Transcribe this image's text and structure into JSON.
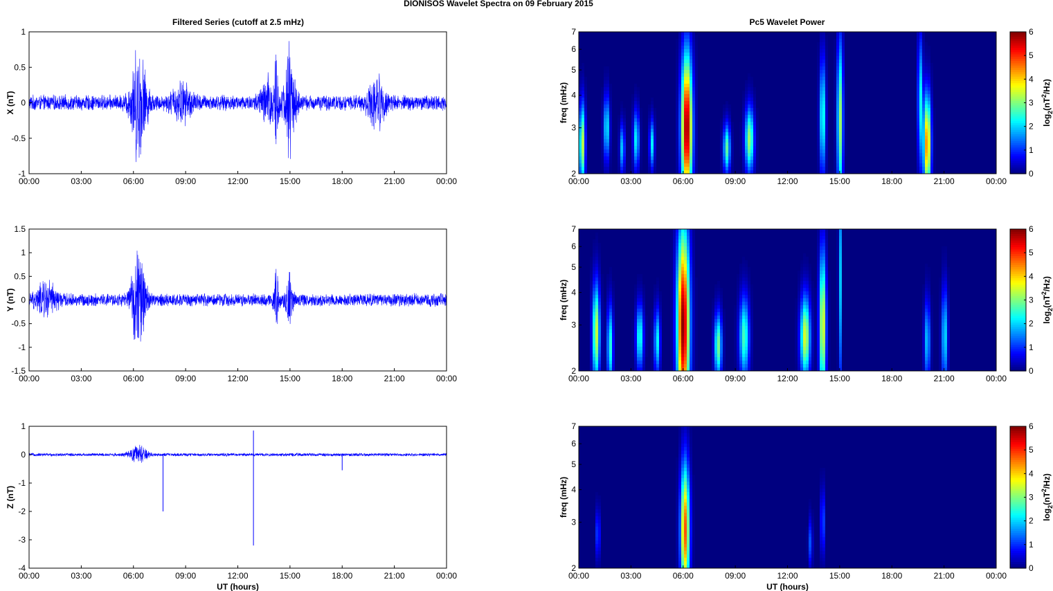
{
  "figure": {
    "title": "DIONISOS Wavelet Spectra on 09 February  2015",
    "left_title": "Filtered Series (cutoff at 2.5 mHz)",
    "right_title": "Pc5 Wavelet Power",
    "x_label": "UT (hours)",
    "x_ticks": [
      "00:00",
      "03:00",
      "06:00",
      "09:00",
      "12:00",
      "15:00",
      "18:00",
      "21:00",
      "00:00"
    ],
    "freq_label": "freq (mHz)",
    "freq_ticks": [
      "2",
      "3",
      "4",
      "5",
      "6",
      "7"
    ],
    "colorbar_label_base": "log",
    "colorbar_label_sub": "2",
    "colorbar_label_mid": "(nT",
    "colorbar_label_sup": "2",
    "colorbar_label_end": "/Hz)",
    "colorbar_ticks": [
      "0",
      "1",
      "2",
      "3",
      "4",
      "5",
      "6"
    ]
  },
  "chart_data": [
    {
      "type": "line",
      "title": "Filtered Series (cutoff at 2.5 mHz)",
      "xlabel": "",
      "ylabel": "X (nT)",
      "xlim": [
        0,
        24
      ],
      "ylim": [
        -1,
        1
      ],
      "yticks": [
        "-1",
        "-0.5",
        "0",
        "0.5",
        "1"
      ],
      "color": "#0000ff",
      "noise_level": 0.12,
      "bursts": [
        {
          "t": 6.3,
          "amp": 0.85,
          "w": 0.45
        },
        {
          "t": 15.0,
          "amp": 0.9,
          "w": 0.3
        },
        {
          "t": 14.2,
          "amp": 0.8,
          "w": 0.1
        },
        {
          "t": 20.0,
          "amp": 0.35,
          "w": 0.5
        },
        {
          "t": 8.8,
          "amp": 0.25,
          "w": 0.6
        },
        {
          "t": 13.8,
          "amp": 0.35,
          "w": 0.5
        }
      ]
    },
    {
      "type": "line",
      "title": "",
      "xlabel": "",
      "ylabel": "Y (nT)",
      "xlim": [
        0,
        24
      ],
      "ylim": [
        -1.5,
        1.5
      ],
      "yticks": [
        "-1.5",
        "-1",
        "-0.5",
        "0",
        "0.5",
        "1",
        "1.5"
      ],
      "color": "#0000ff",
      "noise_level": 0.15,
      "bursts": [
        {
          "t": 6.3,
          "amp": 1.15,
          "w": 0.4
        },
        {
          "t": 14.2,
          "amp": 0.7,
          "w": 0.15
        },
        {
          "t": 15.0,
          "amp": 0.6,
          "w": 0.2
        },
        {
          "t": 1.0,
          "amp": 0.35,
          "w": 0.6
        }
      ]
    },
    {
      "type": "line",
      "title": "",
      "xlabel": "UT (hours)",
      "ylabel": "Z (nT)",
      "xlim": [
        0,
        24
      ],
      "ylim": [
        -4,
        1
      ],
      "yticks": [
        "-4",
        "-3",
        "-2",
        "-1",
        "0",
        "1"
      ],
      "color": "#0000ff",
      "noise_level": 0.06,
      "bursts": [
        {
          "t": 6.3,
          "amp": 0.35,
          "w": 0.5
        }
      ],
      "spikes": [
        {
          "t": 7.7,
          "value": -2.0
        },
        {
          "t": 12.9,
          "value": -3.2
        },
        {
          "t": 12.9,
          "value": 0.85
        },
        {
          "t": 18.0,
          "value": -0.55
        }
      ]
    },
    {
      "type": "heatmap",
      "title": "Pc5 Wavelet Power",
      "xlabel": "",
      "ylabel": "freq (mHz)",
      "xlim": [
        0,
        24
      ],
      "ylim": [
        2,
        7
      ],
      "y_scale": "log",
      "colorbar": [
        0,
        6
      ],
      "blobs": [
        {
          "t": 0.2,
          "f": 2.6,
          "amp": 3.5,
          "wt": 0.12,
          "wf": 0.25
        },
        {
          "t": 1.6,
          "f": 3.0,
          "amp": 2.3,
          "wt": 0.12,
          "wf": 0.2
        },
        {
          "t": 2.5,
          "f": 2.5,
          "amp": 2.0,
          "wt": 0.1,
          "wf": 0.15
        },
        {
          "t": 3.3,
          "f": 2.7,
          "amp": 2.3,
          "wt": 0.12,
          "wf": 0.18
        },
        {
          "t": 4.2,
          "f": 2.6,
          "amp": 2.2,
          "wt": 0.1,
          "wf": 0.15
        },
        {
          "t": 6.2,
          "f": 3.0,
          "amp": 6.0,
          "wt": 0.22,
          "wf": 0.45
        },
        {
          "t": 8.5,
          "f": 2.5,
          "amp": 2.8,
          "wt": 0.14,
          "wf": 0.15
        },
        {
          "t": 9.8,
          "f": 2.7,
          "amp": 3.2,
          "wt": 0.18,
          "wf": 0.2
        },
        {
          "t": 14.0,
          "f": 3.3,
          "amp": 2.6,
          "wt": 0.12,
          "wf": 0.35
        },
        {
          "t": 15.0,
          "f": 3.2,
          "amp": 3.2,
          "wt": 0.12,
          "wf": 0.5
        },
        {
          "t": 20.0,
          "f": 2.6,
          "amp": 4.6,
          "wt": 0.15,
          "wf": 0.3
        },
        {
          "t": 19.6,
          "f": 3.8,
          "amp": 2.3,
          "wt": 0.1,
          "wf": 0.4
        }
      ]
    },
    {
      "type": "heatmap",
      "title": "",
      "xlabel": "",
      "ylabel": "freq (mHz)",
      "xlim": [
        0,
        24
      ],
      "ylim": [
        2,
        7
      ],
      "y_scale": "log",
      "colorbar": [
        0,
        6
      ],
      "blobs": [
        {
          "t": 1.0,
          "f": 2.8,
          "amp": 3.5,
          "wt": 0.15,
          "wf": 0.3
        },
        {
          "t": 1.8,
          "f": 2.5,
          "amp": 2.5,
          "wt": 0.12,
          "wf": 0.25
        },
        {
          "t": 3.5,
          "f": 2.7,
          "amp": 2.5,
          "wt": 0.15,
          "wf": 0.2
        },
        {
          "t": 4.5,
          "f": 2.6,
          "amp": 2.3,
          "wt": 0.12,
          "wf": 0.2
        },
        {
          "t": 6.0,
          "f": 3.0,
          "amp": 6.0,
          "wt": 0.25,
          "wf": 0.6
        },
        {
          "t": 8.0,
          "f": 2.5,
          "amp": 3.0,
          "wt": 0.15,
          "wf": 0.2
        },
        {
          "t": 9.5,
          "f": 2.7,
          "amp": 2.7,
          "wt": 0.2,
          "wf": 0.25
        },
        {
          "t": 13.0,
          "f": 2.7,
          "amp": 3.6,
          "wt": 0.2,
          "wf": 0.25
        },
        {
          "t": 14.0,
          "f": 3.0,
          "amp": 3.8,
          "wt": 0.14,
          "wf": 0.45
        },
        {
          "t": 15.0,
          "f": 4.5,
          "amp": 2.0,
          "wt": 0.06,
          "wf": 0.7
        },
        {
          "t": 20.0,
          "f": 2.6,
          "amp": 2.0,
          "wt": 0.12,
          "wf": 0.25
        },
        {
          "t": 21.0,
          "f": 2.7,
          "amp": 2.2,
          "wt": 0.12,
          "wf": 0.3
        }
      ]
    },
    {
      "type": "heatmap",
      "title": "",
      "xlabel": "UT (hours)",
      "ylabel": "freq (mHz)",
      "xlim": [
        0,
        24
      ],
      "ylim": [
        2,
        7
      ],
      "y_scale": "log",
      "colorbar": [
        0,
        6
      ],
      "blobs": [
        {
          "t": 6.1,
          "f": 2.8,
          "amp": 4.8,
          "wt": 0.18,
          "wf": 0.4
        },
        {
          "t": 1.1,
          "f": 2.7,
          "amp": 1.4,
          "wt": 0.08,
          "wf": 0.15
        },
        {
          "t": 13.3,
          "f": 2.5,
          "amp": 1.3,
          "wt": 0.08,
          "wf": 0.15
        },
        {
          "t": 14.0,
          "f": 3.0,
          "amp": 1.5,
          "wt": 0.08,
          "wf": 0.2
        }
      ]
    }
  ]
}
